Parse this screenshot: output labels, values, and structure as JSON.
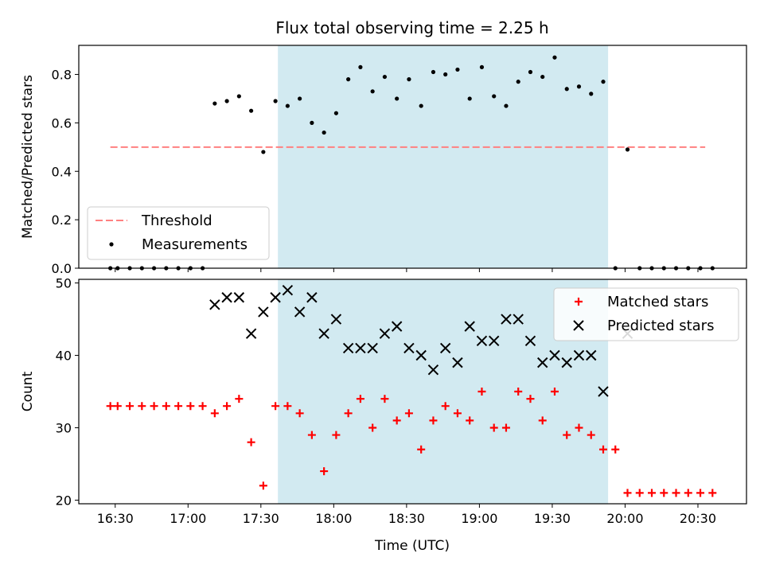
{
  "chart_data": {
    "type": "scatter",
    "title": "Flux total observing time = 2.25 h",
    "xlabel": "Time (UTC)",
    "x_ticks": [
      "16:30",
      "17:00",
      "17:30",
      "18:00",
      "18:30",
      "19:00",
      "19:30",
      "20:00",
      "20:30"
    ],
    "xlim_minutes": [
      975,
      1250
    ],
    "shaded_interval_minutes": [
      1057,
      1193
    ],
    "shade_color": "#add8e6",
    "panels": [
      {
        "ylabel": "Matched/Predicted stars",
        "ylim": [
          0,
          0.92
        ],
        "yticks": [
          "0.0",
          "0.2",
          "0.4",
          "0.6",
          "0.8"
        ],
        "legend_position": "lower-left",
        "threshold": {
          "name": "Threshold",
          "value": 0.5,
          "x_range": [
            988,
            1233
          ],
          "color": "#ff8080"
        },
        "measurements": {
          "name": "Measurements",
          "color": "#000000",
          "x": [
            988,
            991,
            996,
            1001,
            1006,
            1011,
            1016,
            1021,
            1026,
            1031,
            1036,
            1041,
            1046,
            1051,
            1056,
            1061,
            1066,
            1071,
            1076,
            1081,
            1086,
            1091,
            1096,
            1101,
            1106,
            1111,
            1116,
            1121,
            1126,
            1131,
            1136,
            1141,
            1146,
            1151,
            1156,
            1161,
            1166,
            1171,
            1176,
            1181,
            1186,
            1191,
            1196,
            1201,
            1206,
            1211,
            1216,
            1221,
            1226,
            1231,
            1236
          ],
          "y": [
            0,
            0,
            0,
            0,
            0,
            0,
            0,
            0,
            0,
            0.68,
            0.69,
            0.71,
            0.65,
            0.48,
            0.69,
            0.67,
            0.7,
            0.6,
            0.56,
            0.64,
            0.78,
            0.83,
            0.73,
            0.79,
            0.7,
            0.78,
            0.67,
            0.81,
            0.8,
            0.82,
            0.7,
            0.83,
            0.71,
            0.67,
            0.77,
            0.81,
            0.79,
            0.87,
            0.74,
            0.75,
            0.72,
            0.77,
            0,
            0.49,
            0,
            0,
            0,
            0,
            0,
            0,
            0
          ]
        }
      },
      {
        "ylabel": "Count",
        "ylim": [
          19.5,
          50.5
        ],
        "yticks": [
          "20",
          "30",
          "40",
          "50"
        ],
        "legend_position": "upper-right",
        "series": [
          {
            "name": "Matched stars",
            "marker": "plus",
            "color": "#ff0000",
            "x": [
              988,
              991,
              996,
              1001,
              1006,
              1011,
              1016,
              1021,
              1026,
              1031,
              1036,
              1041,
              1046,
              1051,
              1056,
              1061,
              1066,
              1071,
              1076,
              1081,
              1086,
              1091,
              1096,
              1101,
              1106,
              1111,
              1116,
              1121,
              1126,
              1131,
              1136,
              1141,
              1146,
              1151,
              1156,
              1161,
              1166,
              1171,
              1176,
              1181,
              1186,
              1191,
              1196,
              1201,
              1206,
              1211,
              1216,
              1221,
              1226,
              1231,
              1236
            ],
            "y": [
              33,
              33,
              33,
              33,
              33,
              33,
              33,
              33,
              33,
              32,
              33,
              34,
              28,
              22,
              33,
              33,
              32,
              29,
              24,
              29,
              32,
              34,
              30,
              34,
              31,
              32,
              27,
              31,
              33,
              32,
              31,
              35,
              30,
              30,
              35,
              34,
              31,
              35,
              29,
              30,
              29,
              27,
              27,
              21,
              21,
              21,
              21,
              21,
              21,
              21,
              21
            ]
          },
          {
            "name": "Predicted stars",
            "marker": "x",
            "color": "#000000",
            "x": [
              1031,
              1036,
              1041,
              1046,
              1051,
              1056,
              1061,
              1066,
              1071,
              1076,
              1081,
              1086,
              1091,
              1096,
              1101,
              1106,
              1111,
              1116,
              1121,
              1126,
              1131,
              1136,
              1141,
              1146,
              1151,
              1156,
              1161,
              1166,
              1171,
              1176,
              1181,
              1186,
              1191,
              1201
            ],
            "y": [
              47,
              48,
              48,
              43,
              46,
              48,
              49,
              46,
              48,
              43,
              45,
              41,
              41,
              41,
              43,
              44,
              41,
              40,
              38,
              41,
              39,
              44,
              42,
              42,
              45,
              45,
              42,
              39,
              40,
              39,
              40,
              40,
              35,
              43
            ]
          }
        ]
      }
    ]
  }
}
